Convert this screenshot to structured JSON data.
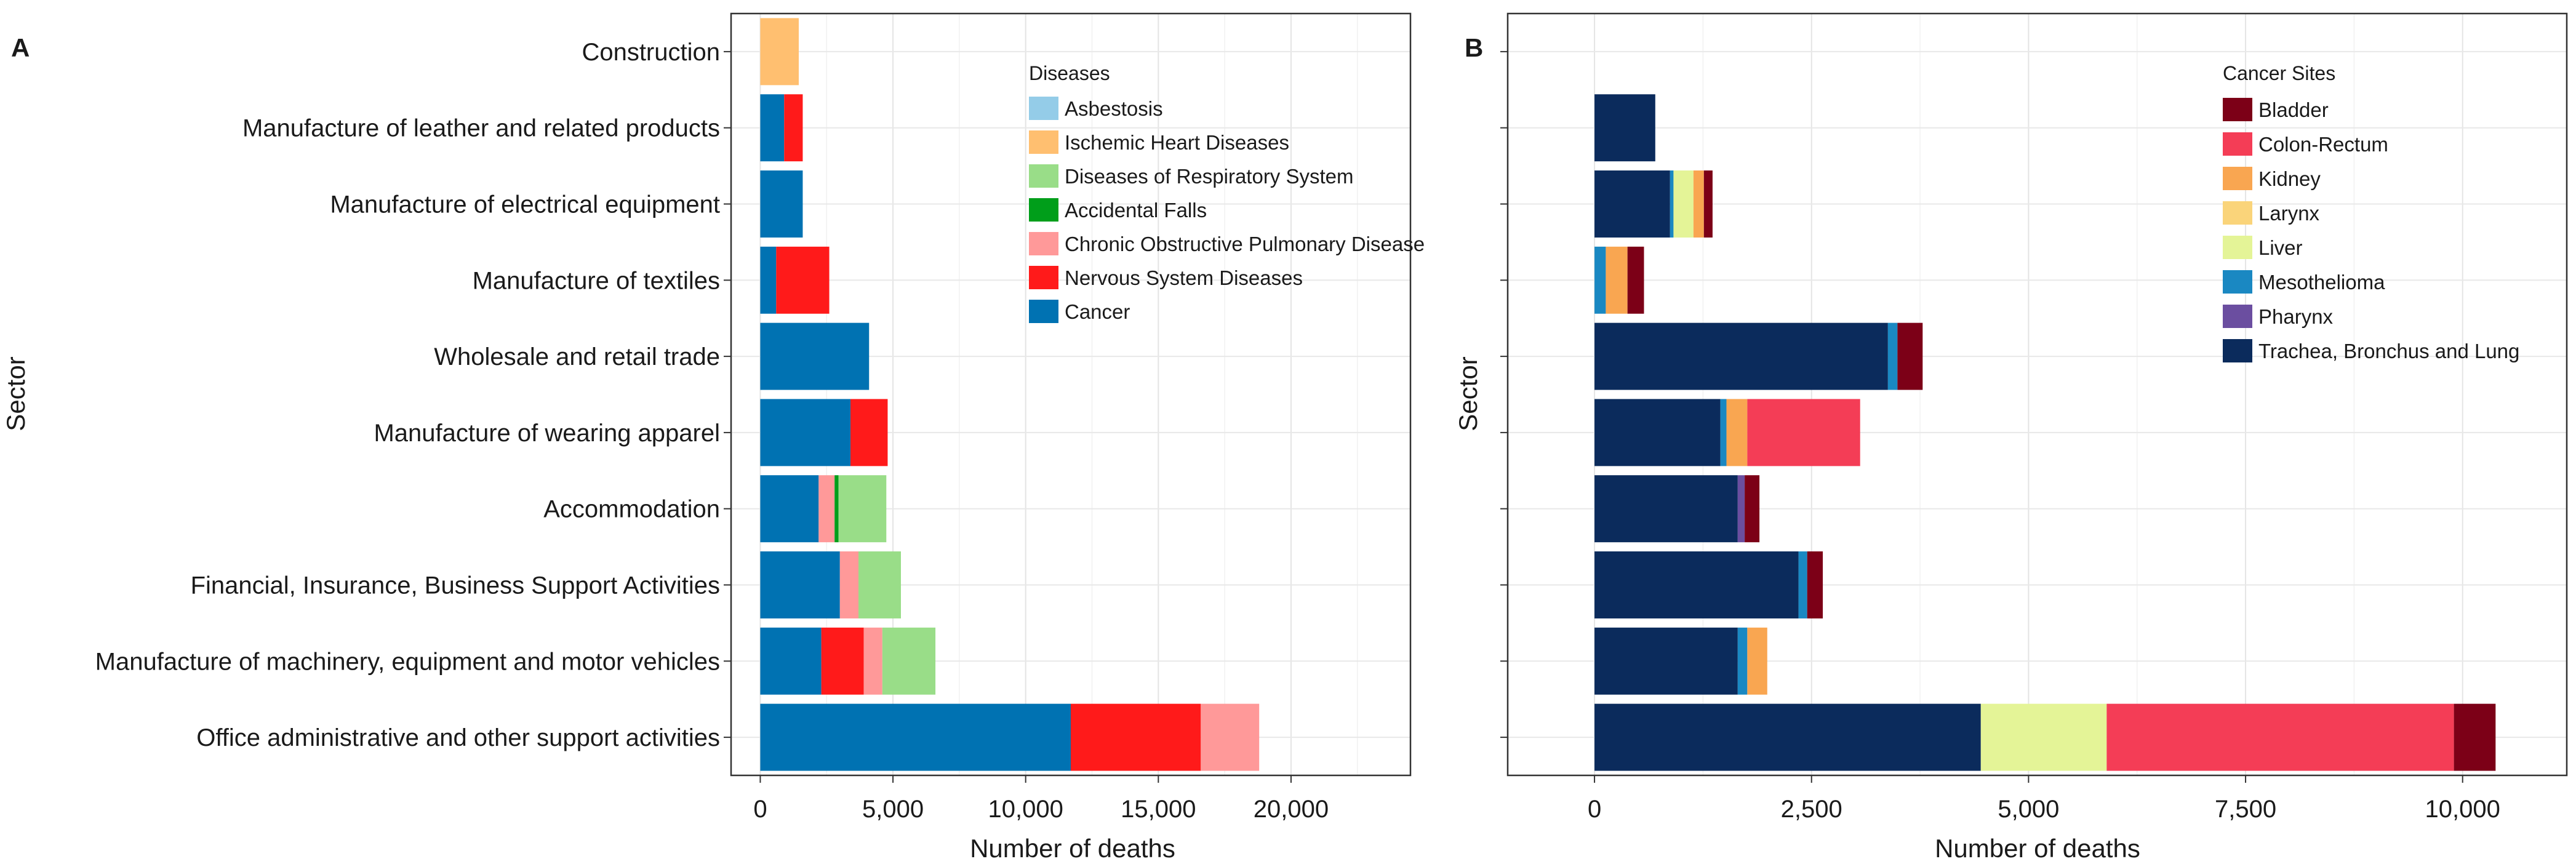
{
  "chart_data": [
    {
      "panel": "A",
      "type": "bar",
      "orientation": "horizontal",
      "stacked": true,
      "xlabel": "Number of deaths",
      "ylabel": "Sector",
      "xlim": [
        -1100,
        24500
      ],
      "xticks": [
        0,
        5000,
        10000,
        15000,
        20000
      ],
      "xtick_labels": [
        "0",
        "5,000",
        "10,000",
        "15,000",
        "20,000"
      ],
      "grid": true,
      "legend_title": "Diseases",
      "legend_position": "top-right",
      "categories": [
        "Construction",
        "Manufacture of leather and related products",
        "Manufacture of electrical equipment",
        "Manufacture of textiles",
        "Wholesale and retail trade",
        "Manufacture of wearing apparel",
        "Accommodation",
        "Financial, Insurance, Business Support Activities",
        "Manufacture of machinery, equipment and motor vehicles",
        "Office administrative and other support activities"
      ],
      "series": [
        {
          "name": "Cancer",
          "color": "#0072b2",
          "values": [
            0,
            900,
            1600,
            600,
            4100,
            3400,
            2200,
            3000,
            2300,
            11700
          ]
        },
        {
          "name": "Nervous System Diseases",
          "color": "#ff1a1a",
          "values": [
            0,
            700,
            0,
            2000,
            0,
            1400,
            0,
            0,
            1600,
            4900
          ]
        },
        {
          "name": "Chronic Obstructive Pulmonary Disease",
          "color": "#ff9999",
          "values": [
            0,
            0,
            0,
            0,
            0,
            0,
            600,
            700,
            700,
            2200
          ]
        },
        {
          "name": "Accidental Falls",
          "color": "#009e1a",
          "values": [
            0,
            0,
            0,
            0,
            0,
            0,
            150,
            0,
            0,
            0
          ]
        },
        {
          "name": "Diseases of Respiratory System",
          "color": "#99dd88",
          "values": [
            0,
            0,
            0,
            0,
            0,
            0,
            1800,
            1600,
            2000,
            0
          ]
        },
        {
          "name": "Ischemic Heart Diseases",
          "color": "#ffbf70",
          "values": [
            1450,
            0,
            0,
            0,
            0,
            0,
            0,
            0,
            0,
            0
          ]
        },
        {
          "name": "Asbestosis",
          "color": "#94cce8",
          "values": [
            0,
            0,
            0,
            0,
            0,
            0,
            0,
            0,
            0,
            0
          ]
        }
      ],
      "legend_order": [
        "Asbestosis",
        "Ischemic Heart Diseases",
        "Diseases of Respiratory System",
        "Accidental Falls",
        "Chronic Obstructive Pulmonary Disease",
        "Nervous System Diseases",
        "Cancer"
      ]
    },
    {
      "panel": "B",
      "type": "bar",
      "orientation": "horizontal",
      "stacked": true,
      "xlabel": "Number of deaths",
      "ylabel": "Sector",
      "xlim": [
        -1000,
        11200
      ],
      "xticks": [
        0,
        2500,
        5000,
        7500,
        10000
      ],
      "xtick_labels": [
        "0",
        "2,500",
        "5,000",
        "7,500",
        "10,000"
      ],
      "grid": true,
      "legend_title": "Cancer Sites",
      "legend_position": "top-right",
      "categories": [
        "Construction",
        "Manufacture of leather and related products",
        "Manufacture of electrical equipment",
        "Manufacture of textiles",
        "Wholesale and retail trade",
        "Manufacture of wearing apparel",
        "Accommodation",
        "Financial, Insurance, Business Support Activities",
        "Manufacture of machinery, equipment and motor vehicles",
        "Office administrative and other support activities"
      ],
      "series": [
        {
          "name": "Trachea, Bronchus and Lung",
          "color": "#0b2b5c",
          "values": [
            0,
            700,
            870,
            0,
            3380,
            1450,
            1650,
            2350,
            1650,
            4450
          ]
        },
        {
          "name": "Pharynx",
          "color": "#6b4ea0",
          "values": [
            0,
            0,
            0,
            0,
            0,
            0,
            80,
            0,
            0,
            0
          ]
        },
        {
          "name": "Mesothelioma",
          "color": "#1a88c2",
          "values": [
            0,
            0,
            40,
            130,
            110,
            70,
            0,
            100,
            110,
            0
          ]
        },
        {
          "name": "Liver",
          "color": "#e4f497",
          "values": [
            0,
            0,
            230,
            0,
            0,
            0,
            0,
            0,
            0,
            1450
          ]
        },
        {
          "name": "Larynx",
          "color": "#fad47a",
          "values": [
            0,
            0,
            0,
            0,
            0,
            0,
            0,
            0,
            0,
            0
          ]
        },
        {
          "name": "Kidney",
          "color": "#f9a651",
          "values": [
            0,
            0,
            120,
            250,
            0,
            240,
            0,
            0,
            230,
            0
          ]
        },
        {
          "name": "Colon-Rectum",
          "color": "#f43d56",
          "values": [
            0,
            0,
            0,
            0,
            0,
            1300,
            0,
            0,
            0,
            4000
          ]
        },
        {
          "name": "Bladder",
          "color": "#7c0017",
          "values": [
            0,
            0,
            100,
            190,
            290,
            0,
            170,
            180,
            0,
            480
          ]
        }
      ],
      "legend_order": [
        "Bladder",
        "Colon-Rectum",
        "Kidney",
        "Larynx",
        "Liver",
        "Mesothelioma",
        "Pharynx",
        "Trachea, Bronchus and Lung"
      ]
    }
  ]
}
